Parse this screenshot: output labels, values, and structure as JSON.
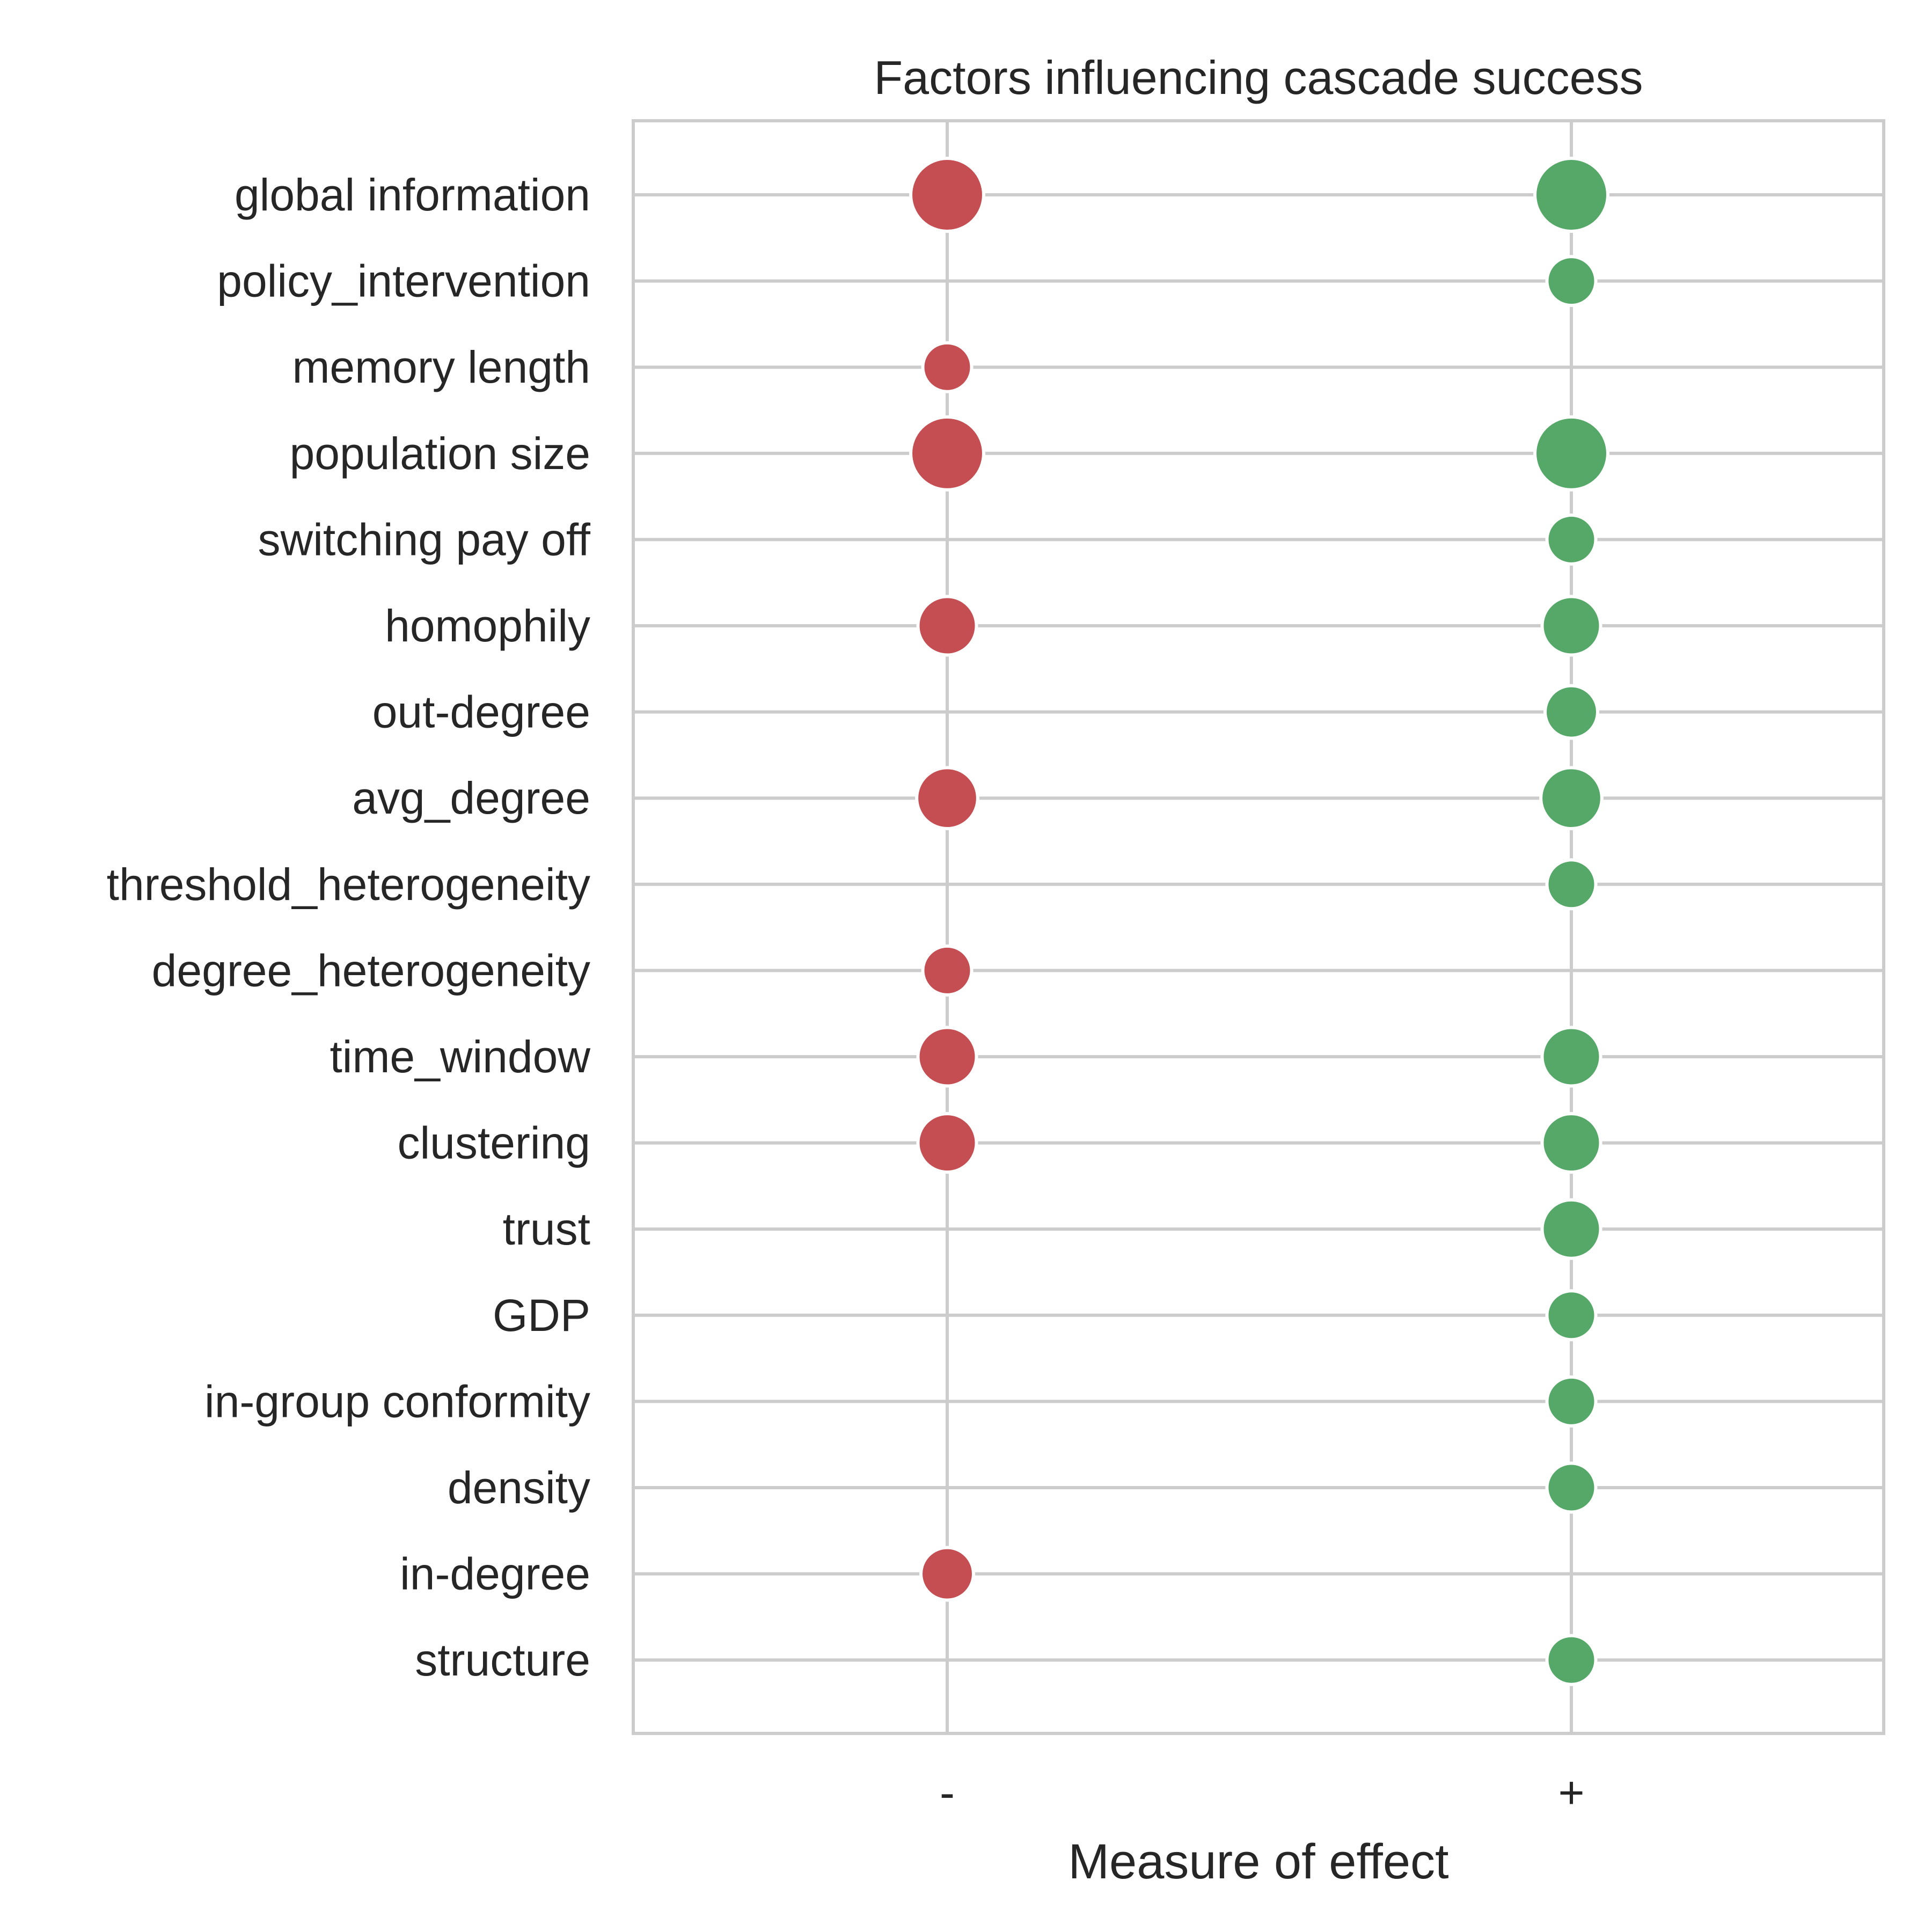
{
  "chart_data": {
    "type": "scatter",
    "title": "Factors influencing cascade success",
    "xlabel": "Measure of effect",
    "ylabel": "",
    "x_categories": [
      "-",
      "+"
    ],
    "y_categories": [
      "global information",
      "policy_intervention",
      "memory length",
      "population size",
      "switching pay off",
      "homophily",
      "out-degree",
      "avg_degree",
      "threshold_heterogeneity",
      "degree_heterogeneity",
      "time_window",
      "clustering",
      "trust",
      "GDP",
      "in-group conformity",
      "density",
      "in-degree",
      "structure"
    ],
    "grid": true,
    "series": [
      {
        "x": "-",
        "color": "#c44e52",
        "points": [
          {
            "factor": "global information",
            "size": 6
          },
          {
            "factor": "memory length",
            "size": 1
          },
          {
            "factor": "population size",
            "size": 6
          },
          {
            "factor": "homophily",
            "size": 2.5
          },
          {
            "factor": "avg_degree",
            "size": 3
          },
          {
            "factor": "degree_heterogeneity",
            "size": 1
          },
          {
            "factor": "time_window",
            "size": 2.5
          },
          {
            "factor": "clustering",
            "size": 2.5
          },
          {
            "factor": "in-degree",
            "size": 1.5
          }
        ]
      },
      {
        "x": "+",
        "color": "#55a868",
        "points": [
          {
            "factor": "global information",
            "size": 6
          },
          {
            "factor": "policy_intervention",
            "size": 1
          },
          {
            "factor": "population size",
            "size": 6
          },
          {
            "factor": "switching pay off",
            "size": 1
          },
          {
            "factor": "homophily",
            "size": 2.5
          },
          {
            "factor": "out-degree",
            "size": 1.5
          },
          {
            "factor": "avg_degree",
            "size": 3
          },
          {
            "factor": "threshold_heterogeneity",
            "size": 1
          },
          {
            "factor": "time_window",
            "size": 2.5
          },
          {
            "factor": "clustering",
            "size": 2.5
          },
          {
            "factor": "trust",
            "size": 2.5
          },
          {
            "factor": "GDP",
            "size": 1
          },
          {
            "factor": "in-group conformity",
            "size": 1
          },
          {
            "factor": "density",
            "size": 1
          },
          {
            "factor": "structure",
            "size": 1
          }
        ]
      }
    ],
    "colors": {
      "grid": "#cccccc",
      "frame": "#cccccc",
      "text": "#262626",
      "marker_edge": "#ffffff"
    }
  }
}
